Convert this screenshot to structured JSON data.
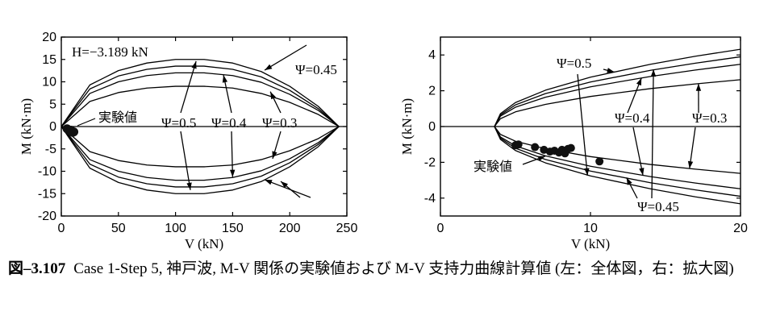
{
  "caption": {
    "number": "図‒3.107",
    "text": "Case 1-Step 5, 神戸波, M-V 関係の実験値および M-V 支持力曲線計算値 (左：全体図，右：拡大図)"
  },
  "chart_data": [
    {
      "type": "line",
      "panel": "left",
      "xlabel": "V (kN)",
      "ylabel": "M (kN·m)",
      "xlim": [
        0,
        250
      ],
      "ylim": [
        -20,
        20
      ],
      "xticks": [
        0,
        50,
        100,
        150,
        200,
        250
      ],
      "yticks": [
        -20,
        -15,
        -10,
        -5,
        0,
        5,
        10,
        15,
        20
      ],
      "annotation_H": "H=−3.189 kN",
      "experiment_label": "実験値",
      "series": [
        {
          "name": "Ψ=0.3",
          "upper": [
            [
              0,
              0
            ],
            [
              25,
              5.6
            ],
            [
              50,
              7.6
            ],
            [
              75,
              8.6
            ],
            [
              100,
              9.0
            ],
            [
              125,
              9.0
            ],
            [
              150,
              8.6
            ],
            [
              175,
              7.4
            ],
            [
              200,
              5.4
            ],
            [
              225,
              2.7
            ],
            [
              243,
              0
            ]
          ],
          "lower": [
            [
              0,
              0
            ],
            [
              25,
              -5.6
            ],
            [
              50,
              -7.6
            ],
            [
              75,
              -8.6
            ],
            [
              100,
              -9.0
            ],
            [
              125,
              -9.0
            ],
            [
              150,
              -8.6
            ],
            [
              175,
              -7.4
            ],
            [
              200,
              -5.4
            ],
            [
              225,
              -2.7
            ],
            [
              243,
              0
            ]
          ]
        },
        {
          "name": "Ψ=0.4",
          "upper": [
            [
              0,
              0
            ],
            [
              25,
              7.4
            ],
            [
              50,
              10.0
            ],
            [
              75,
              11.4
            ],
            [
              100,
              12.0
            ],
            [
              125,
              12.0
            ],
            [
              150,
              11.4
            ],
            [
              175,
              9.9
            ],
            [
              200,
              7.2
            ],
            [
              225,
              3.6
            ],
            [
              243,
              0
            ]
          ],
          "lower": [
            [
              0,
              0
            ],
            [
              25,
              -7.4
            ],
            [
              50,
              -10.0
            ],
            [
              75,
              -11.4
            ],
            [
              100,
              -12.0
            ],
            [
              125,
              -12.0
            ],
            [
              150,
              -11.4
            ],
            [
              175,
              -9.9
            ],
            [
              200,
              -7.2
            ],
            [
              225,
              -3.6
            ],
            [
              243,
              0
            ]
          ]
        },
        {
          "name": "Ψ=0.45",
          "upper": [
            [
              0,
              0
            ],
            [
              25,
              8.4
            ],
            [
              50,
              11.3
            ],
            [
              75,
              12.8
            ],
            [
              100,
              13.5
            ],
            [
              125,
              13.5
            ],
            [
              150,
              12.8
            ],
            [
              175,
              11.1
            ],
            [
              200,
              8.1
            ],
            [
              225,
              4.0
            ],
            [
              243,
              0
            ]
          ],
          "lower": [
            [
              0,
              0
            ],
            [
              25,
              -8.4
            ],
            [
              50,
              -11.3
            ],
            [
              75,
              -12.8
            ],
            [
              100,
              -13.5
            ],
            [
              125,
              -13.5
            ],
            [
              150,
              -12.8
            ],
            [
              175,
              -11.1
            ],
            [
              200,
              -8.1
            ],
            [
              225,
              -4.0
            ],
            [
              243,
              0
            ]
          ]
        },
        {
          "name": "Ψ=0.5",
          "upper": [
            [
              0,
              0
            ],
            [
              25,
              9.3
            ],
            [
              50,
              12.5
            ],
            [
              75,
              14.2
            ],
            [
              100,
              15.0
            ],
            [
              125,
              15.0
            ],
            [
              150,
              14.2
            ],
            [
              175,
              12.3
            ],
            [
              200,
              9.0
            ],
            [
              225,
              4.5
            ],
            [
              243,
              0
            ]
          ],
          "lower": [
            [
              0,
              0
            ],
            [
              25,
              -9.3
            ],
            [
              50,
              -12.5
            ],
            [
              75,
              -14.2
            ],
            [
              100,
              -15.0
            ],
            [
              125,
              -15.0
            ],
            [
              150,
              -14.2
            ],
            [
              175,
              -12.3
            ],
            [
              200,
              -9.0
            ],
            [
              225,
              -4.5
            ],
            [
              243,
              0
            ]
          ]
        }
      ],
      "experiment": [
        [
          5,
          -0.5
        ],
        [
          6,
          -0.7
        ],
        [
          7,
          -0.9
        ],
        [
          8,
          -1.0
        ],
        [
          9,
          -1.1
        ],
        [
          10,
          -1.3
        ],
        [
          11,
          -1.2
        ],
        [
          8.5,
          -0.8
        ]
      ]
    },
    {
      "type": "line",
      "panel": "right",
      "xlabel": "V (kN)",
      "ylabel": "M (kN·m)",
      "xlim": [
        0,
        20
      ],
      "ylim": [
        -5,
        5
      ],
      "xticks": [
        0,
        10,
        20
      ],
      "yticks": [
        -4,
        -2,
        0,
        2,
        4
      ],
      "experiment_label": "実験値",
      "series": [
        {
          "name": "Ψ=0.3",
          "upper": [
            [
              3.6,
              0
            ],
            [
              4,
              0.44
            ],
            [
              5,
              0.82
            ],
            [
              7,
              1.24
            ],
            [
              10,
              1.68
            ],
            [
              14,
              2.12
            ],
            [
              17,
              2.38
            ],
            [
              20,
              2.62
            ]
          ],
          "lower": [
            [
              3.6,
              0
            ],
            [
              4,
              -0.44
            ],
            [
              5,
              -0.82
            ],
            [
              7,
              -1.24
            ],
            [
              10,
              -1.68
            ],
            [
              14,
              -2.12
            ],
            [
              17,
              -2.38
            ],
            [
              20,
              -2.62
            ]
          ]
        },
        {
          "name": "Ψ=0.4",
          "upper": [
            [
              3.6,
              0
            ],
            [
              4,
              0.58
            ],
            [
              5,
              1.08
            ],
            [
              7,
              1.64
            ],
            [
              10,
              2.22
            ],
            [
              14,
              2.8
            ],
            [
              17,
              3.16
            ],
            [
              20,
              3.48
            ]
          ],
          "lower": [
            [
              3.6,
              0
            ],
            [
              4,
              -0.58
            ],
            [
              5,
              -1.08
            ],
            [
              7,
              -1.64
            ],
            [
              10,
              -2.22
            ],
            [
              14,
              -2.8
            ],
            [
              17,
              -3.16
            ],
            [
              20,
              -3.48
            ]
          ]
        },
        {
          "name": "Ψ=0.45",
          "upper": [
            [
              3.6,
              0
            ],
            [
              4,
              0.65
            ],
            [
              5,
              1.21
            ],
            [
              7,
              1.84
            ],
            [
              10,
              2.49
            ],
            [
              14,
              3.14
            ],
            [
              17,
              3.54
            ],
            [
              20,
              3.9
            ]
          ],
          "lower": [
            [
              3.6,
              0
            ],
            [
              4,
              -0.65
            ],
            [
              5,
              -1.21
            ],
            [
              7,
              -1.84
            ],
            [
              10,
              -2.49
            ],
            [
              14,
              -3.14
            ],
            [
              17,
              -3.54
            ],
            [
              20,
              -3.9
            ]
          ]
        },
        {
          "name": "Ψ=0.5",
          "upper": [
            [
              3.6,
              0
            ],
            [
              4,
              0.72
            ],
            [
              5,
              1.34
            ],
            [
              7,
              2.03
            ],
            [
              10,
              2.76
            ],
            [
              14,
              3.48
            ],
            [
              17,
              3.93
            ],
            [
              20,
              4.32
            ]
          ],
          "lower": [
            [
              3.6,
              0
            ],
            [
              4,
              -0.72
            ],
            [
              5,
              -1.34
            ],
            [
              7,
              -2.03
            ],
            [
              10,
              -2.76
            ],
            [
              14,
              -3.48
            ],
            [
              17,
              -3.93
            ],
            [
              20,
              -4.32
            ]
          ]
        }
      ],
      "experiment": [
        [
          5.0,
          -1.05
        ],
        [
          5.2,
          -1.0
        ],
        [
          6.3,
          -1.15
        ],
        [
          6.9,
          -1.3
        ],
        [
          7.3,
          -1.4
        ],
        [
          7.6,
          -1.35
        ],
        [
          7.9,
          -1.45
        ],
        [
          8.1,
          -1.3
        ],
        [
          8.3,
          -1.5
        ],
        [
          8.5,
          -1.25
        ],
        [
          8.7,
          -1.2
        ],
        [
          10.6,
          -1.95
        ]
      ]
    }
  ]
}
